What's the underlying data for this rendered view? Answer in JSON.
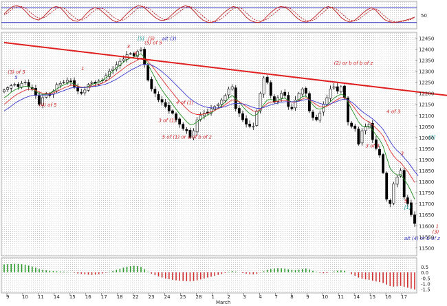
{
  "chart_data": [
    {
      "id": "stochastic",
      "type": "line",
      "ylim": [
        0,
        100
      ],
      "yticks": [
        "50"
      ],
      "ref_levels": [
        20,
        80
      ],
      "series": [
        {
          "values": [
            55,
            72,
            85,
            88,
            82,
            65,
            45,
            35,
            30,
            42,
            60,
            78,
            85,
            80,
            62,
            40,
            28,
            25,
            35,
            55,
            72,
            80,
            75,
            60,
            45,
            30,
            22,
            30,
            48,
            65,
            80,
            88,
            85,
            72,
            55,
            40,
            30,
            28,
            38,
            55,
            70,
            82,
            88,
            82,
            65,
            45,
            30,
            22,
            20,
            28,
            45,
            62,
            75,
            85,
            80,
            62,
            42,
            28,
            22,
            20,
            30,
            48,
            65,
            78,
            85,
            82,
            70,
            52,
            35,
            25,
            22,
            30,
            45,
            62,
            78,
            85,
            78,
            60,
            40,
            28,
            22,
            28,
            42,
            58,
            72,
            80,
            70,
            50,
            32,
            24,
            20,
            22,
            26,
            30,
            35,
            42
          ]
        },
        {
          "values": [
            50,
            62,
            76,
            84,
            85,
            78,
            62,
            48,
            38,
            38,
            48,
            62,
            76,
            82,
            76,
            60,
            44,
            32,
            30,
            40,
            56,
            70,
            78,
            76,
            62,
            46,
            34,
            28,
            34,
            48,
            64,
            78,
            86,
            82,
            70,
            54,
            42,
            32,
            32,
            42,
            56,
            70,
            82,
            85,
            78,
            62,
            46,
            32,
            24,
            24,
            32,
            46,
            62,
            76,
            82,
            76,
            60,
            44,
            32,
            26,
            26,
            36,
            50,
            64,
            78,
            84,
            80,
            66,
            50,
            36,
            28,
            26,
            34,
            48,
            64,
            78,
            82,
            74,
            58,
            42,
            30,
            26,
            32,
            46,
            60,
            72,
            76,
            64,
            46,
            32,
            24,
            22,
            24,
            28,
            32,
            37
          ]
        }
      ],
      "colors": {
        "fast": "#c02a2a",
        "slow": "#c02a2a",
        "levels": "#3030c0"
      }
    },
    {
      "id": "price",
      "type": "candlestick",
      "ylim": [
        11470,
        12470
      ],
      "yticks": [
        "12450",
        "12400",
        "12350",
        "12300",
        "12250",
        "12200",
        "12150",
        "12100",
        "12050",
        "12000",
        "11950",
        "11900",
        "11850",
        "11800",
        "11750",
        "11700",
        "11650",
        "11600",
        "11550",
        "11500"
      ],
      "xticks": [
        "9",
        "10",
        "11",
        "14",
        "15",
        "16",
        "17",
        "18",
        "22",
        "23",
        "24",
        "25",
        "28",
        "1",
        "2",
        "3",
        "4",
        "7",
        "8",
        "9",
        "10",
        "11",
        "14",
        "15",
        "16",
        "17"
      ],
      "x_month_label": "March",
      "closes": [
        12215,
        12225,
        12235,
        12240,
        12230,
        12245,
        12250,
        12230,
        12220,
        12190,
        12150,
        12180,
        12200,
        12190,
        12210,
        12240,
        12245,
        12250,
        12260,
        12255,
        12230,
        12210,
        12200,
        12215,
        12240,
        12250,
        12245,
        12255,
        12260,
        12280,
        12300,
        12310,
        12330,
        12345,
        12355,
        12375,
        12380,
        12370,
        12390,
        12400,
        12330,
        12260,
        12220,
        12200,
        12170,
        12160,
        12140,
        12120,
        12110,
        12080,
        12060,
        12040,
        12030,
        12000,
        12030,
        12080,
        12100,
        12110,
        12110,
        12130,
        12140,
        12150,
        12170,
        12190,
        12220,
        12230,
        12130,
        12110,
        12080,
        12060,
        12050,
        12050,
        12120,
        12200,
        12270,
        12250,
        12190,
        12160,
        12180,
        12200,
        12190,
        12140,
        12130,
        12170,
        12200,
        12220,
        12200,
        12120,
        12090,
        12080,
        12110,
        12150,
        12180,
        12220,
        12230,
        12210,
        12230,
        12180,
        12070,
        12050,
        12040,
        11970,
        12030,
        12050,
        12060,
        11990,
        11950,
        11920,
        11840,
        11720,
        11700,
        11790,
        11820,
        11850,
        11730,
        11700,
        11650,
        11610
      ],
      "bar_color": "#000000",
      "series": [
        {
          "name": "ma_fast",
          "color": "#1b8a1b",
          "values": [
            12180,
            12190,
            12205,
            12215,
            12222,
            12228,
            12232,
            12230,
            12224,
            12210,
            12198,
            12195,
            12196,
            12200,
            12208,
            12220,
            12230,
            12238,
            12245,
            12248,
            12242,
            12232,
            12225,
            12226,
            12232,
            12240,
            12245,
            12250,
            12258,
            12270,
            12285,
            12300,
            12315,
            12328,
            12340,
            12352,
            12360,
            12364,
            12372,
            12380,
            12360,
            12330,
            12300,
            12270,
            12240,
            12215,
            12192,
            12172,
            12150,
            12128,
            12108,
            12090,
            12072,
            12058,
            12060,
            12070,
            12082,
            12092,
            12100,
            12112,
            12122,
            12132,
            12145,
            12160,
            12178,
            12190,
            12176,
            12160,
            12140,
            12122,
            12108,
            12098,
            12104,
            12124,
            12150,
            12170,
            12172,
            12168,
            12170,
            12175,
            12178,
            12168,
            12160,
            12162,
            12172,
            12184,
            12188,
            12168,
            12148,
            12132,
            12128,
            12134,
            12146,
            12162,
            12178,
            12188,
            12196,
            12190,
            12160,
            12128,
            12100,
            12070,
            12052,
            12048,
            12050,
            12034,
            12010,
            11990,
            11960,
            11910,
            11860,
            11840,
            11830,
            11832,
            11810,
            11786,
            11755,
            11720
          ]
        },
        {
          "name": "ma_mid",
          "color": "#e03030",
          "values": [
            12150,
            12162,
            12176,
            12188,
            12198,
            12206,
            12214,
            12218,
            12218,
            12214,
            12206,
            12200,
            12198,
            12198,
            12202,
            12208,
            12216,
            12224,
            12230,
            12236,
            12236,
            12232,
            12228,
            12226,
            12228,
            12232,
            12236,
            12240,
            12246,
            12254,
            12264,
            12276,
            12288,
            12300,
            12312,
            12324,
            12334,
            12342,
            12350,
            12360,
            12356,
            12344,
            12326,
            12306,
            12284,
            12264,
            12242,
            12222,
            12202,
            12182,
            12164,
            12146,
            12130,
            12116,
            12108,
            12104,
            12104,
            12106,
            12110,
            12116,
            12122,
            12130,
            12138,
            12148,
            12160,
            12170,
            12168,
            12162,
            12152,
            12140,
            12130,
            12120,
            12118,
            12126,
            12140,
            12154,
            12160,
            12162,
            12164,
            12166,
            12168,
            12164,
            12160,
            12160,
            12166,
            12174,
            12180,
            12172,
            12160,
            12148,
            12140,
            12138,
            12142,
            12150,
            12162,
            12172,
            12180,
            12180,
            12168,
            12150,
            12130,
            12108,
            12090,
            12078,
            12070,
            12058,
            12042,
            12026,
            12006,
            11974,
            11940,
            11916,
            11898,
            11886,
            11866,
            11846,
            11822,
            11796
          ]
        },
        {
          "name": "ma_slow",
          "color": "#3a3ad0",
          "values": [
            12120,
            12130,
            12142,
            12154,
            12164,
            12172,
            12180,
            12186,
            12190,
            12192,
            12192,
            12192,
            12192,
            12194,
            12196,
            12200,
            12206,
            12212,
            12218,
            12224,
            12226,
            12226,
            12226,
            12226,
            12228,
            12230,
            12232,
            12234,
            12238,
            12242,
            12248,
            12256,
            12264,
            12274,
            12284,
            12294,
            12304,
            12312,
            12320,
            12328,
            12332,
            12332,
            12328,
            12320,
            12310,
            12298,
            12284,
            12270,
            12254,
            12238,
            12222,
            12206,
            12190,
            12176,
            12164,
            12154,
            12146,
            12140,
            12136,
            12134,
            12134,
            12134,
            12136,
            12140,
            12146,
            12152,
            12154,
            12154,
            12152,
            12148,
            12142,
            12136,
            12132,
            12132,
            12136,
            12142,
            12148,
            12152,
            12156,
            12160,
            12162,
            12162,
            12162,
            12162,
            12164,
            12168,
            12172,
            12170,
            12166,
            12160,
            12154,
            12150,
            12150,
            12152,
            12158,
            12164,
            12170,
            12174,
            12170,
            12160,
            12148,
            12132,
            12118,
            12106,
            12096,
            12084,
            12070,
            12054,
            12036,
            12010,
            11982,
            11958,
            11940,
            11926,
            11908,
            11890,
            11868,
            11846,
            11826
          ]
        }
      ],
      "trendline": {
        "from": [
          0,
          12430
        ],
        "to": [
          129,
          12185
        ],
        "color": "#e02020"
      },
      "annotations": [
        {
          "text": "(3) of 5",
          "i": 1,
          "y": 12290,
          "color": "#d02020"
        },
        {
          "text": "5",
          "i": 3,
          "y": 12265,
          "color": "#3030c0"
        },
        {
          "text": "(4) of 5",
          "i": 10,
          "y": 12140,
          "color": "#d02020"
        },
        {
          "text": "1",
          "i": 22,
          "y": 12305,
          "color": "#d02020"
        },
        {
          "text": "2",
          "i": 24,
          "y": 12225,
          "color": "#d02020"
        },
        {
          "text": "3",
          "i": 35,
          "y": 12405,
          "color": "#d02020"
        },
        {
          "text": "[5]",
          "i": 38,
          "y": 12440,
          "color": "#1a9a9a"
        },
        {
          "text": "(5)",
          "i": 41,
          "y": 12440,
          "color": "#d02020"
        },
        {
          "text": "(5) of 5",
          "i": 40,
          "y": 12422,
          "color": "#d02020"
        },
        {
          "text": "alt (3)",
          "i": 45,
          "y": 12440,
          "color": "#3030c0"
        },
        {
          "text": "4",
          "i": 37,
          "y": 12375,
          "color": "#d02020"
        },
        {
          "text": "4 of (1)",
          "i": 49,
          "y": 12150,
          "color": "#d02020"
        },
        {
          "text": "3 of (1)",
          "i": 44,
          "y": 12070,
          "color": "#d02020"
        },
        {
          "text": "5 of (1) or a of b of z",
          "i": 45,
          "y": 11995,
          "color": "#d02020"
        },
        {
          "text": "(2) or b of b of z",
          "i": 94,
          "y": 12330,
          "color": "#d02020"
        },
        {
          "text": "4 of 3",
          "i": 109,
          "y": 12110,
          "color": "#d02020"
        },
        {
          "text": "3 of 3",
          "i": 103,
          "y": 11955,
          "color": "#d02020"
        },
        {
          "text": "3",
          "i": 113,
          "y": 11920,
          "color": "#d02020"
        },
        {
          "text": "[3]",
          "i": 121,
          "y": 11995,
          "color": "#1a9a9a"
        },
        {
          "text": "(4)-?",
          "i": 127,
          "y": 11860,
          "color": "#d02020"
        },
        {
          "text": "2-?",
          "i": 127,
          "y": 11780,
          "color": "#d02020"
        },
        {
          "text": "5",
          "i": 114,
          "y": 11705,
          "color": "#d02020"
        },
        {
          "text": "[1]",
          "i": 114,
          "y": 11675,
          "color": "#1a9a9a"
        },
        {
          "text": "1",
          "i": 123,
          "y": 11590,
          "color": "#d02020"
        },
        {
          "text": "(3)",
          "i": 122,
          "y": 11565,
          "color": "#d02020"
        },
        {
          "text": "alt (4)  or b of z",
          "i": 114,
          "y": 11535,
          "color": "#3030c0"
        }
      ]
    },
    {
      "id": "histogram",
      "type": "bar",
      "ylim": [
        -1.7,
        1.1
      ],
      "yticks": [
        "0.5",
        "0.0",
        "-0.5",
        "-1.0",
        "-1.5"
      ],
      "colors": {
        "positive": "#2a9a2a",
        "negative": "#d03030"
      },
      "values": [
        0.7,
        0.72,
        0.74,
        0.76,
        0.75,
        0.72,
        0.68,
        0.6,
        0.52,
        0.42,
        0.3,
        0.22,
        0.18,
        0.14,
        0.12,
        0.1,
        0.08,
        0.06,
        0.04,
        0.02,
        -0.04,
        -0.1,
        -0.14,
        -0.18,
        -0.2,
        -0.22,
        -0.2,
        -0.16,
        -0.1,
        -0.04,
        0.04,
        0.12,
        0.22,
        0.32,
        0.42,
        0.5,
        0.55,
        0.58,
        0.55,
        0.48,
        0.28,
        0.05,
        -0.12,
        -0.25,
        -0.36,
        -0.46,
        -0.54,
        -0.6,
        -0.66,
        -0.7,
        -0.74,
        -0.76,
        -0.78,
        -0.8,
        -0.76,
        -0.7,
        -0.62,
        -0.54,
        -0.46,
        -0.38,
        -0.3,
        -0.22,
        -0.14,
        -0.06,
        0.04,
        0.12,
        0.06,
        0.0,
        -0.06,
        -0.12,
        -0.16,
        -0.18,
        -0.12,
        -0.02,
        0.1,
        0.22,
        0.3,
        0.34,
        0.36,
        0.36,
        0.34,
        0.28,
        0.22,
        0.2,
        0.24,
        0.3,
        0.34,
        0.26,
        0.14,
        0.04,
        -0.04,
        -0.08,
        -0.06,
        0.0,
        0.08,
        0.14,
        0.18,
        0.14,
        0.0,
        -0.16,
        -0.3,
        -0.46,
        -0.56,
        -0.62,
        -0.66,
        -0.74,
        -0.8,
        -0.86,
        -0.94,
        -1.08,
        -1.22,
        -1.26,
        -1.24,
        -1.2,
        -1.28,
        -1.36,
        -1.44,
        -1.52
      ]
    }
  ]
}
